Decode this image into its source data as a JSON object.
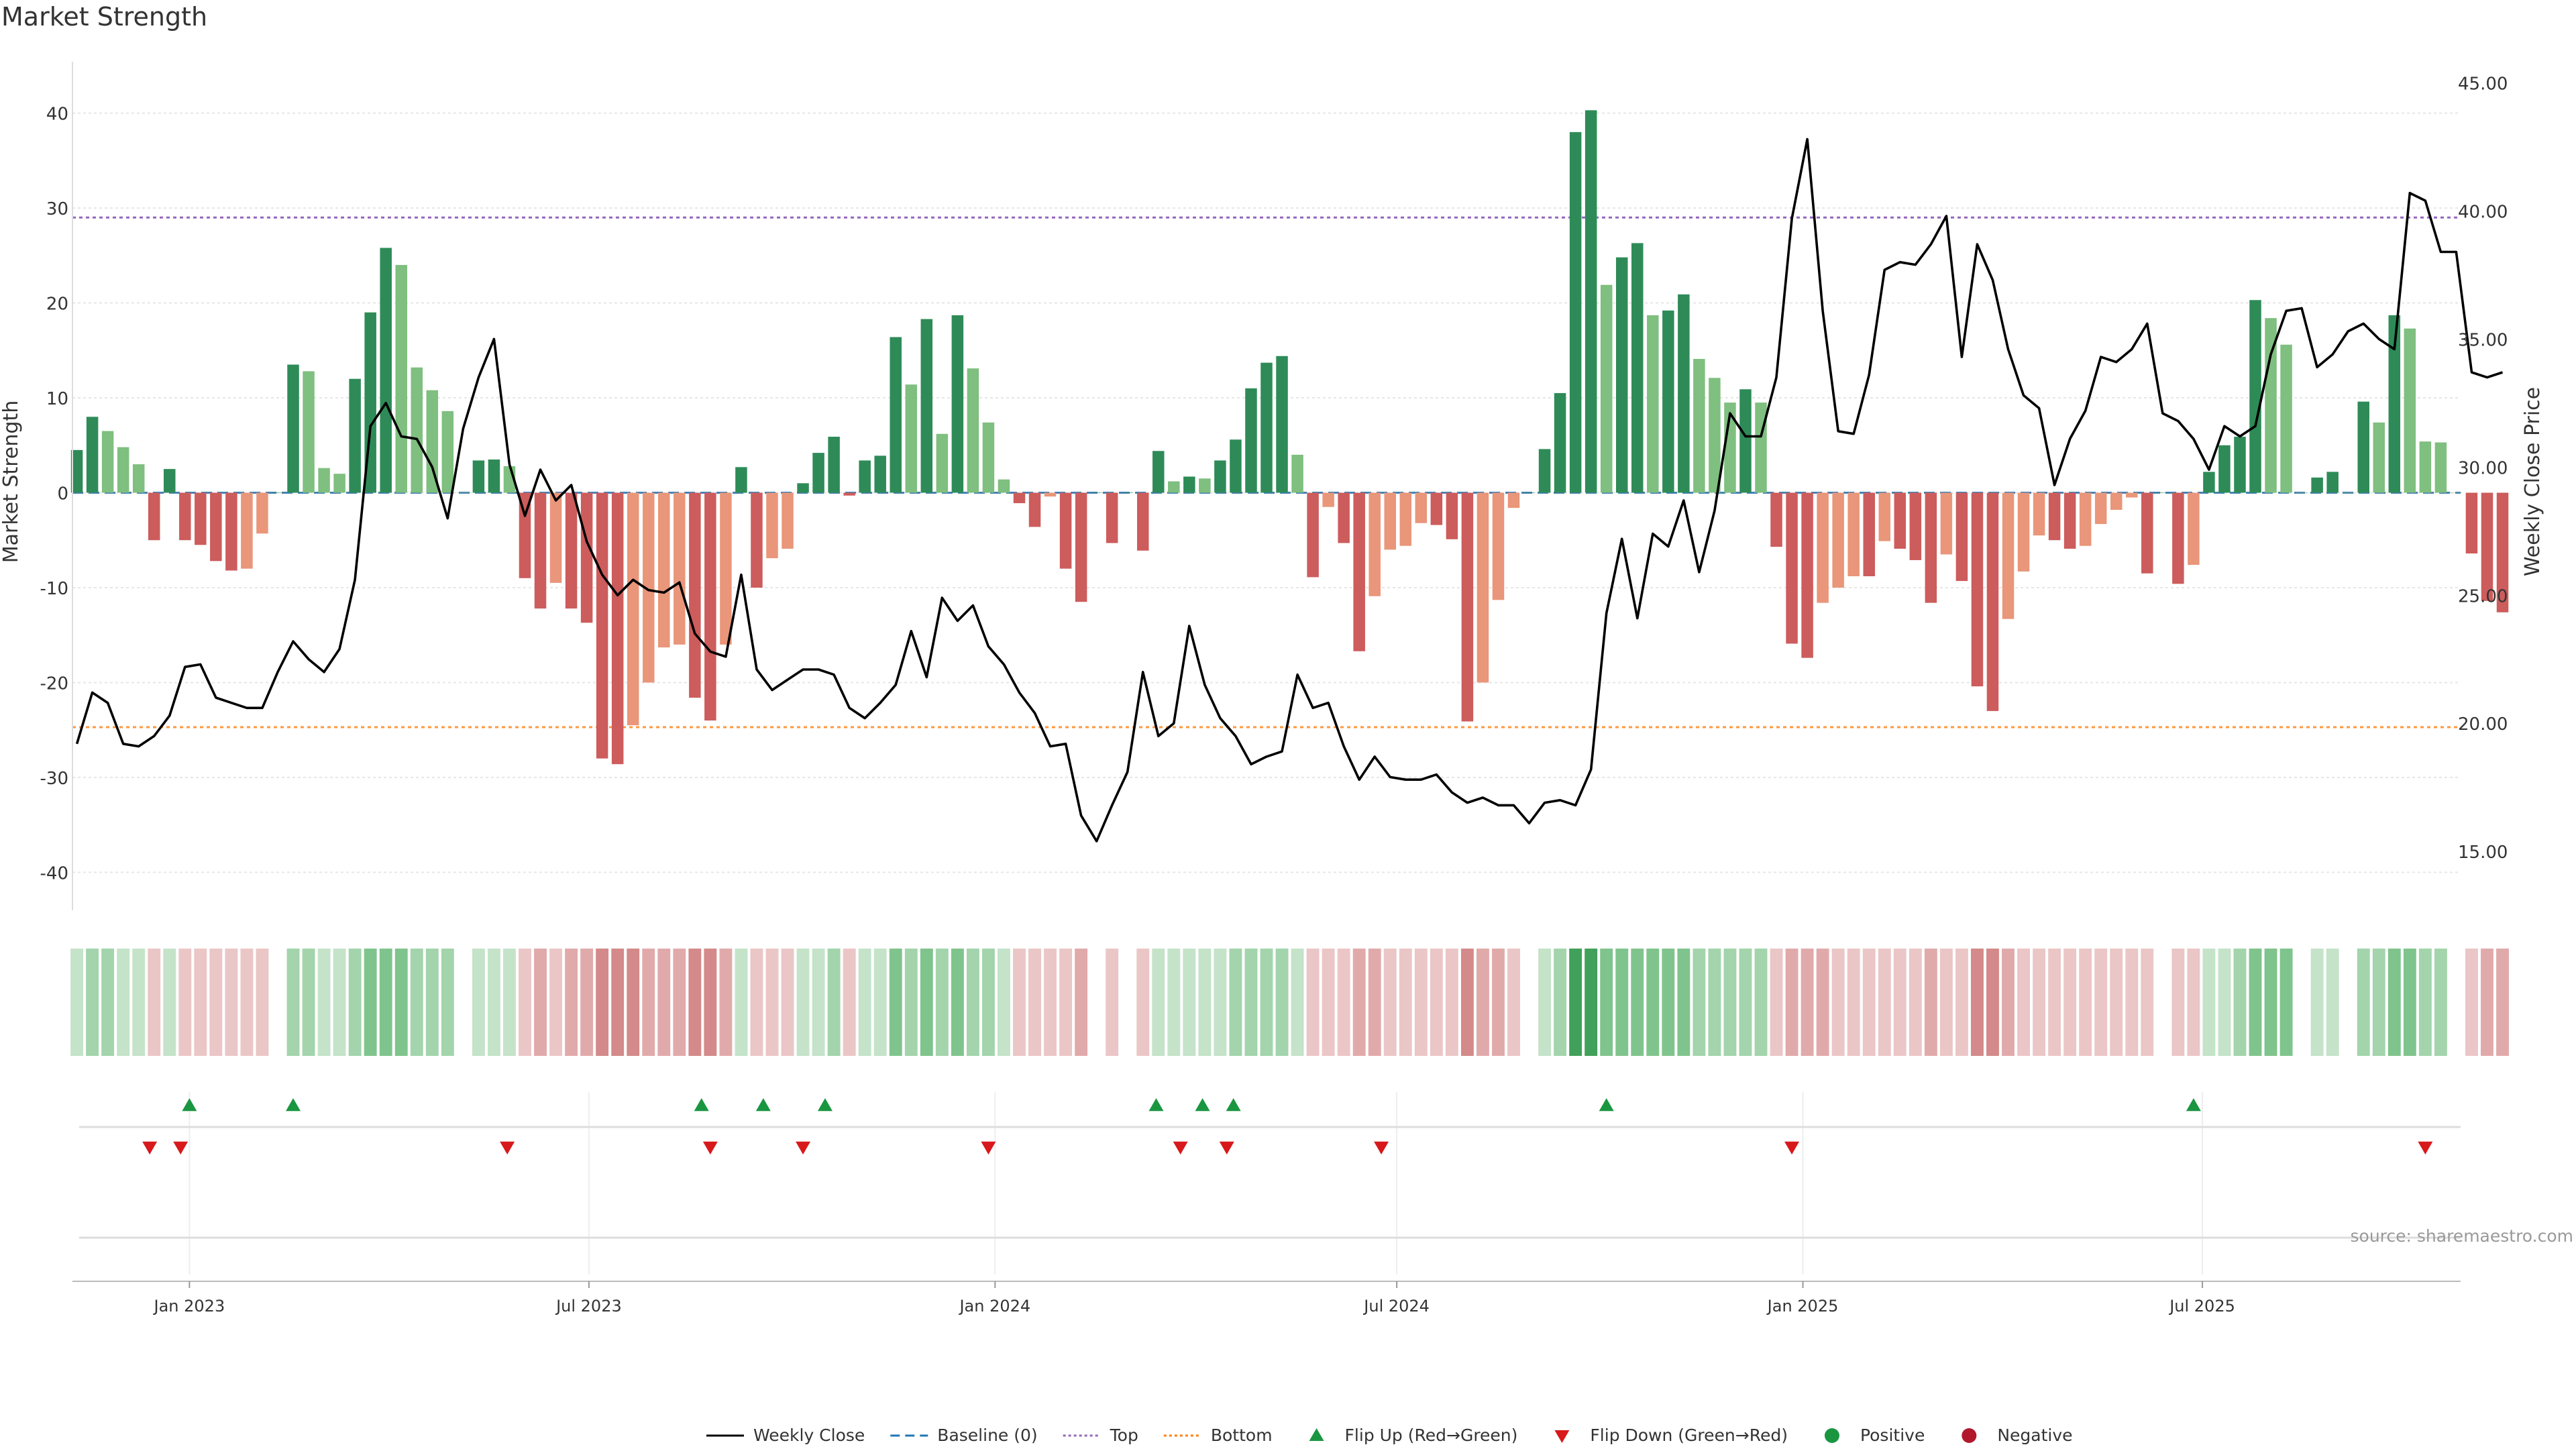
{
  "chart_data": {
    "type": "bar",
    "title": "Market Strength",
    "ylabel_left": "Market Strength",
    "ylabel_right": "Weekly Close Price",
    "source": "source: sharemaestro.com",
    "left_axis": {
      "ylim": [
        -44,
        44
      ],
      "ticks": [
        -40,
        -30,
        -20,
        -10,
        0,
        10,
        20,
        30,
        40
      ]
    },
    "right_axis": {
      "ylim": [
        12.7,
        45.3
      ],
      "ticks": [
        "15.00",
        "20.00",
        "25.00",
        "30.00",
        "35.00",
        "40.00",
        "45.00"
      ]
    },
    "x_axis": {
      "type": "date",
      "start": "2022-11-09",
      "end": "2025-10-26",
      "ticks": [
        {
          "date": "2023-01-01",
          "label": "Jan 2023"
        },
        {
          "date": "2023-07-01",
          "label": "Jul 2023"
        },
        {
          "date": "2024-01-01",
          "label": "Jan 2024"
        },
        {
          "date": "2024-07-01",
          "label": "Jul 2024"
        },
        {
          "date": "2025-01-01",
          "label": "Jan 2025"
        },
        {
          "date": "2025-07-01",
          "label": "Jul 2025"
        }
      ]
    },
    "first_week": "2022-11-11",
    "week_interval_days": 7,
    "reference_lines": {
      "baseline": 0,
      "top": 29,
      "bottom": -24.7
    },
    "grid": "horizontal",
    "market_strength": [
      4.5,
      8,
      6.5,
      4.8,
      3,
      -5,
      2.5,
      -5,
      -5.5,
      -7.2,
      -8.2,
      -8,
      -4.3,
      0,
      13.5,
      12.8,
      2.6,
      2,
      12,
      19,
      25.8,
      24,
      13.2,
      10.8,
      8.6,
      0,
      3.4,
      3.5,
      2.8,
      -9,
      -12.2,
      -9.5,
      -12.2,
      -13.7,
      -28,
      -28.6,
      -24.5,
      -20,
      -16.3,
      -16,
      -21.6,
      -24,
      -16,
      2.7,
      -10,
      -6.9,
      -5.9,
      1,
      4.2,
      5.9,
      -0.3,
      3.4,
      3.9,
      16.4,
      11.4,
      18.3,
      6.2,
      18.7,
      13.1,
      7.4,
      1.4,
      -1.1,
      -3.6,
      -0.4,
      -8,
      -11.5,
      0,
      -5.3,
      0,
      -6.1,
      4.4,
      1.2,
      1.7,
      1.5,
      3.4,
      5.6,
      11,
      13.7,
      14.4,
      4,
      -8.9,
      -1.5,
      -5.3,
      -16.7,
      -10.9,
      -6,
      -5.6,
      -3.2,
      -3.4,
      -4.9,
      -24.1,
      -20,
      -11.3,
      -1.6,
      0,
      4.6,
      10.5,
      38,
      40.3,
      21.9,
      24.8,
      26.3,
      18.7,
      19.2,
      20.9,
      14.1,
      12.1,
      9.5,
      10.9,
      9.5,
      -5.7,
      -15.9,
      -17.4,
      -11.6,
      -10,
      -8.8,
      -8.8,
      -5.1,
      -5.9,
      -7.1,
      -11.6,
      -6.5,
      -9.3,
      -20.4,
      -23,
      -13.3,
      -8.3,
      -4.5,
      -5,
      -5.9,
      -5.6,
      -3.3,
      -1.8,
      -0.5,
      -8.5,
      0,
      -9.6,
      -7.6,
      2.2,
      5,
      5.9,
      20.3,
      18.4,
      15.6,
      0,
      1.6,
      2.2,
      0,
      9.6,
      7.4,
      18.7,
      17.3,
      5.4,
      5.3,
      0,
      -6.4,
      -11.4,
      -12.6
    ],
    "weekly_close": [
      19.2,
      21.2,
      20.8,
      19.2,
      19.1,
      19.5,
      20.3,
      22.2,
      22.3,
      21,
      20.8,
      20.6,
      20.6,
      22,
      23.2,
      22.5,
      22,
      22.9,
      25.6,
      31.6,
      32.5,
      31.2,
      31.1,
      30,
      28,
      31.5,
      33.5,
      35,
      30.1,
      28.1,
      29.9,
      28.7,
      29.3,
      27.1,
      25.8,
      25,
      25.6,
      25.2,
      25.1,
      25.5,
      23.5,
      22.8,
      22.6,
      25.8,
      22.1,
      21.3,
      21.7,
      22.1,
      22.1,
      21.9,
      20.6,
      20.2,
      20.8,
      21.5,
      23.6,
      21.8,
      24.9,
      24,
      24.6,
      23,
      22.3,
      21.2,
      20.4,
      19.1,
      19.2,
      16.4,
      15.4,
      16.8,
      18.1,
      22,
      19.5,
      20,
      23.8,
      21.5,
      20.2,
      19.5,
      18.4,
      18.7,
      18.9,
      21.9,
      20.6,
      20.8,
      19.1,
      17.8,
      18.7,
      17.9,
      17.8,
      17.8,
      18,
      17.3,
      16.9,
      17.1,
      16.8,
      16.8,
      16.1,
      16.9,
      17,
      16.8,
      18.2,
      24.3,
      27.2,
      24.1,
      27.4,
      26.9,
      28.7,
      25.9,
      28.3,
      32.1,
      31.2,
      31.2,
      33.5,
      39.7,
      42.8,
      36.1,
      31.4,
      31.3,
      33.6,
      37.7,
      38,
      37.9,
      38.7,
      39.8,
      34.3,
      38.7,
      37.3,
      34.6,
      32.8,
      32.3,
      29.3,
      31.1,
      32.2,
      34.3,
      34.1,
      34.6,
      35.6,
      32.1,
      31.8,
      31.1,
      29.9,
      31.6,
      31.2,
      31.6,
      34.4,
      36.1,
      36.2,
      33.9,
      34.4,
      35.3,
      35.6,
      35,
      34.6,
      40.7,
      40.4,
      38.4,
      38.4,
      33.7,
      33.5,
      33.7
    ],
    "flip_up_dates": [
      "2023-01-01",
      "2023-02-17",
      "2023-08-21",
      "2023-09-18",
      "2023-10-16",
      "2024-03-14",
      "2024-04-04",
      "2024-04-18",
      "2024-10-04",
      "2025-06-27"
    ],
    "flip_down_dates": [
      "2022-12-14",
      "2022-12-28",
      "2023-05-25",
      "2023-08-25",
      "2023-10-06",
      "2023-12-29",
      "2024-03-25",
      "2024-04-15",
      "2024-06-24",
      "2024-12-27",
      "2025-10-10"
    ],
    "legend": [
      {
        "label": "Weekly Close",
        "marker": "line",
        "color": "#000000"
      },
      {
        "label": "Baseline (0)",
        "marker": "dashed-line",
        "color": "#1f77b4"
      },
      {
        "label": "Top",
        "marker": "dotted-line",
        "color": "#9467bd"
      },
      {
        "label": "Bottom",
        "marker": "dotted-line",
        "color": "#ff7f0e"
      },
      {
        "label": "Flip Up (Red→Green)",
        "marker": "triangle-up",
        "color": "#1a9641"
      },
      {
        "label": "Flip Down (Green→Red)",
        "marker": "triangle-down",
        "color": "#d7191c"
      },
      {
        "label": "Positive",
        "marker": "circle",
        "color": "#1a9641"
      },
      {
        "label": "Negative",
        "marker": "circle",
        "color": "#b2182b"
      }
    ],
    "legend_position": "bottom-center",
    "colors": {
      "pos_strong": "#2e8b57",
      "pos_weak": "#7fbf7f",
      "neg_strong": "#cd5c5c",
      "neg_weak": "#e9967a",
      "line": "#000000",
      "baseline": "#4682b4",
      "top": "#9467bd",
      "bottom": "#ff7f0e"
    }
  }
}
